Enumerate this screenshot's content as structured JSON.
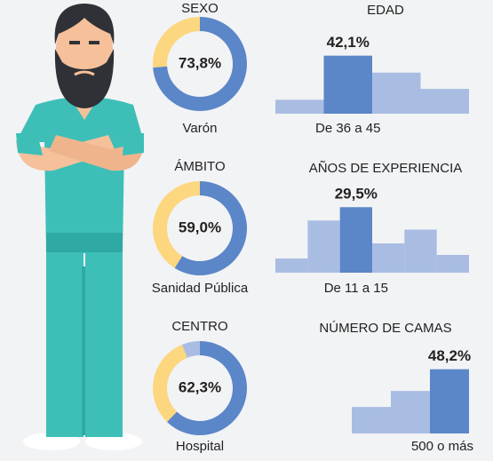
{
  "chart_data": [
    {
      "type": "pie",
      "title": "SEXO",
      "categories": [
        "Varón",
        null
      ],
      "values": [
        73.8,
        26.2
      ],
      "value_labels": [
        "73,8%",
        null
      ],
      "colors": [
        "#5b86c8",
        "#fcd77f"
      ]
    },
    {
      "type": "pie",
      "title": "ÁMBITO",
      "categories": [
        "Sanidad Pública",
        null
      ],
      "values": [
        59.0,
        41.0
      ],
      "value_labels": [
        "59,0%",
        null
      ],
      "colors": [
        "#5b86c8",
        "#fcd77f"
      ]
    },
    {
      "type": "pie",
      "title": "CENTRO",
      "categories": [
        "Hospital",
        null,
        null
      ],
      "values": [
        62.3,
        31.5,
        6.2
      ],
      "value_labels": [
        "62,3%",
        null,
        null
      ],
      "colors": [
        "#5b86c8",
        "#fcd77f",
        "#a9bde3"
      ]
    },
    {
      "type": "bar",
      "title": "EDAD",
      "categories": [
        null,
        "De 36 a 45",
        null,
        null
      ],
      "values": [
        10.1,
        42.1,
        29.8,
        18.0
      ],
      "value_labels": [
        null,
        "42,1%",
        null,
        null
      ],
      "colors": [
        "#a9bde3",
        "#5b86c8",
        "#a9bde3",
        "#a9bde3"
      ],
      "ylim": [
        0,
        58
      ]
    },
    {
      "type": "bar",
      "title": "AÑOS DE EXPERIENCIA",
      "categories": [
        null,
        null,
        "De 11 a 15",
        null,
        null,
        null
      ],
      "values": [
        6.4,
        23.5,
        29.5,
        13.2,
        19.4,
        8.0
      ],
      "value_labels": [
        null,
        null,
        "29,5%",
        null,
        null,
        null
      ],
      "colors": [
        "#a9bde3",
        "#a9bde3",
        "#5b86c8",
        "#a9bde3",
        "#a9bde3",
        "#a9bde3"
      ],
      "ylim": [
        0,
        36
      ]
    },
    {
      "type": "bar",
      "title": "NÚMERO DE CAMAS",
      "categories": [
        null,
        null,
        "500 o más"
      ],
      "values": [
        19.9,
        31.9,
        48.2
      ],
      "value_labels": [
        null,
        null,
        "48,2%"
      ],
      "colors": [
        "#a9bde3",
        "#a9bde3",
        "#5b86c8"
      ],
      "ylim": [
        0,
        60
      ]
    }
  ]
}
